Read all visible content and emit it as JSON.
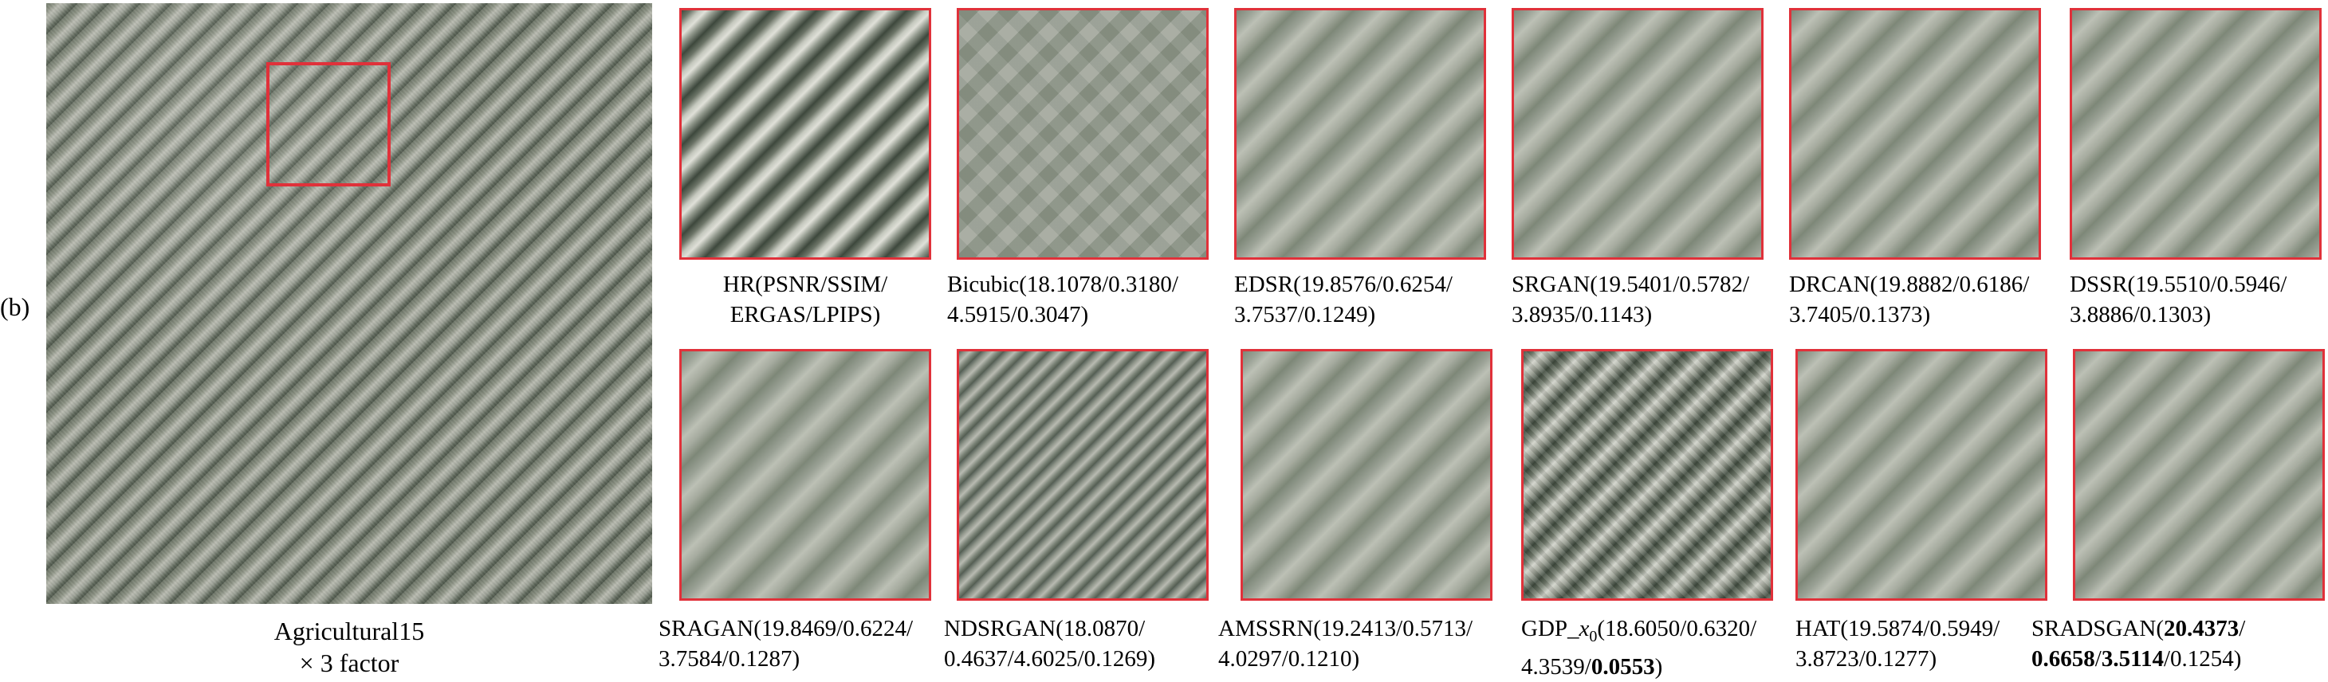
{
  "panel_label": "(b)",
  "main": {
    "caption_line1": "Agricultural15",
    "caption_line2": "× 3 factor"
  },
  "row1": [
    {
      "name": "HR",
      "line1": "HR(PSNR/SSIM/",
      "line2": "ERGAS/LPIPS)"
    },
    {
      "name": "Bicubic",
      "line1": "Bicubic(18.1078/0.3180/",
      "line2": "4.5915/0.3047)"
    },
    {
      "name": "EDSR",
      "line1": "EDSR(19.8576/0.6254/",
      "line2": "3.7537/0.1249)"
    },
    {
      "name": "SRGAN",
      "line1": "SRGAN(19.5401/0.5782/",
      "line2": "3.8935/0.1143)"
    },
    {
      "name": "DRCAN",
      "line1": "DRCAN(19.8882/0.6186/",
      "line2": "3.7405/0.1373)"
    },
    {
      "name": "DSSR",
      "line1": "DSSR(19.5510/0.5946/",
      "line2": "3.8886/0.1303)"
    }
  ],
  "row2": [
    {
      "name": "SRAGAN",
      "line1": "SRAGAN(19.8469/0.6224/",
      "line2": "3.7584/0.1287)"
    },
    {
      "name": "NDSRGAN",
      "line1": "NDSRGAN(18.0870/",
      "line2": "0.4637/4.6025/0.1269)"
    },
    {
      "name": "AMSSRN",
      "line1": "AMSSRN(19.2413/0.5713/",
      "line2": "4.0297/0.1210)"
    },
    {
      "name": "GDP_x0",
      "line1_prefix": "GDP_",
      "line1_var": "x",
      "line1_sub": "0",
      "line1_rest": "(18.6050/0.6320/",
      "line2_prefix": "4.3539/",
      "line2_bold": "0.0553",
      "line2_suffix": ")"
    },
    {
      "name": "HAT",
      "line1": "HAT(19.5874/0.5949/",
      "line2": "3.8723/0.1277)"
    },
    {
      "name": "SRADSGAN",
      "line1_prefix": "SRADSGAN(",
      "line1_bold": "20.4373",
      "line1_suffix": "/",
      "line2_bold_a": "0.6658",
      "line2_sep": "/",
      "line2_bold_b": "3.5114",
      "line2_suffix": "/0.1254)"
    }
  ]
}
